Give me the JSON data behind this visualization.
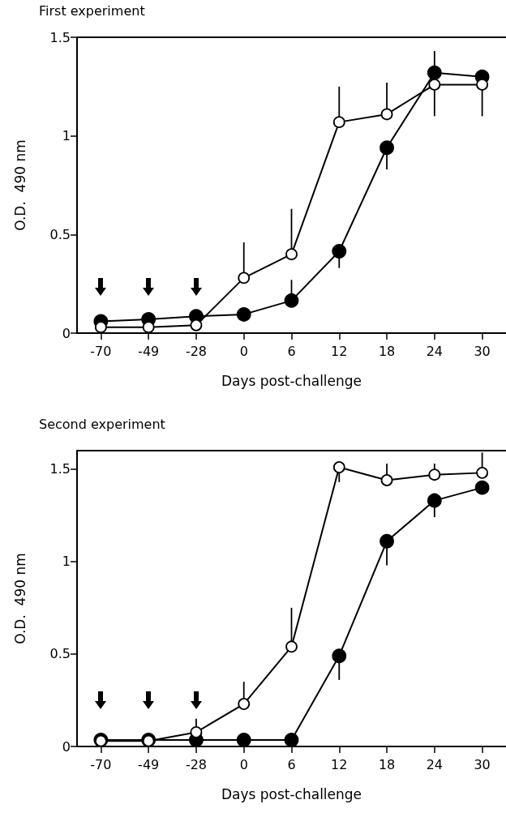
{
  "chart_data": [
    {
      "type": "line",
      "title": "First experiment",
      "xlabel": "Days post-challenge",
      "ylabel": "O.D.  490 nm",
      "categories": [
        "-70",
        "-49",
        "-28",
        "0",
        "6",
        "12",
        "18",
        "24",
        "30"
      ],
      "ylim": [
        0,
        1.5
      ],
      "yticks": [
        0,
        0.5,
        1,
        1.5
      ],
      "grid": false,
      "marker": "circle",
      "line_style": "solid",
      "series": [
        {
          "color": "#000000",
          "values": [
            0.06,
            0.07,
            0.085,
            0.095,
            0.165,
            0.415,
            0.94,
            1.32,
            1.3
          ],
          "errors": [
            null,
            null,
            null,
            null,
            [
              0.165,
              0.27
            ],
            [
              0.33,
              0.415
            ],
            [
              0.83,
              0.94
            ],
            [
              1.32,
              1.43
            ],
            null
          ]
        },
        {
          "color": "#ffffff",
          "values": [
            0.03,
            0.03,
            0.04,
            0.28,
            0.4,
            1.07,
            1.11,
            1.26,
            1.26
          ],
          "errors": [
            null,
            null,
            null,
            [
              0.28,
              0.46
            ],
            [
              0.4,
              0.63
            ],
            [
              1.07,
              1.25
            ],
            [
              1.11,
              1.27
            ],
            [
              1.1,
              1.26
            ],
            [
              1.1,
              1.26
            ]
          ]
        }
      ]
    },
    {
      "type": "line",
      "title": "Second experiment",
      "xlabel": "Days post-challenge",
      "ylabel": "O.D.  490 nm",
      "categories": [
        "-70",
        "-49",
        "-28",
        "0",
        "6",
        "12",
        "18",
        "24",
        "30"
      ],
      "ylim": [
        0,
        1.6
      ],
      "yticks": [
        0,
        0.5,
        1,
        1.5
      ],
      "grid": false,
      "marker": "circle",
      "line_style": "solid",
      "series": [
        {
          "color": "#000000",
          "values": [
            0.035,
            0.035,
            0.035,
            0.035,
            0.035,
            0.49,
            1.11,
            1.33,
            1.4
          ],
          "errors": [
            null,
            null,
            null,
            null,
            null,
            [
              0.36,
              0.49
            ],
            [
              0.98,
              1.11
            ],
            [
              1.24,
              1.33
            ],
            null
          ]
        },
        {
          "color": "#ffffff",
          "values": [
            0.03,
            0.03,
            0.077,
            0.23,
            0.54,
            1.51,
            1.44,
            1.47,
            1.48
          ],
          "errors": [
            null,
            null,
            [
              0.077,
              0.15
            ],
            [
              0.23,
              0.35
            ],
            [
              0.54,
              0.75
            ],
            [
              1.43,
              1.51
            ],
            [
              1.44,
              1.53
            ],
            [
              1.47,
              1.53
            ],
            [
              1.48,
              1.59
            ]
          ]
        }
      ]
    }
  ]
}
